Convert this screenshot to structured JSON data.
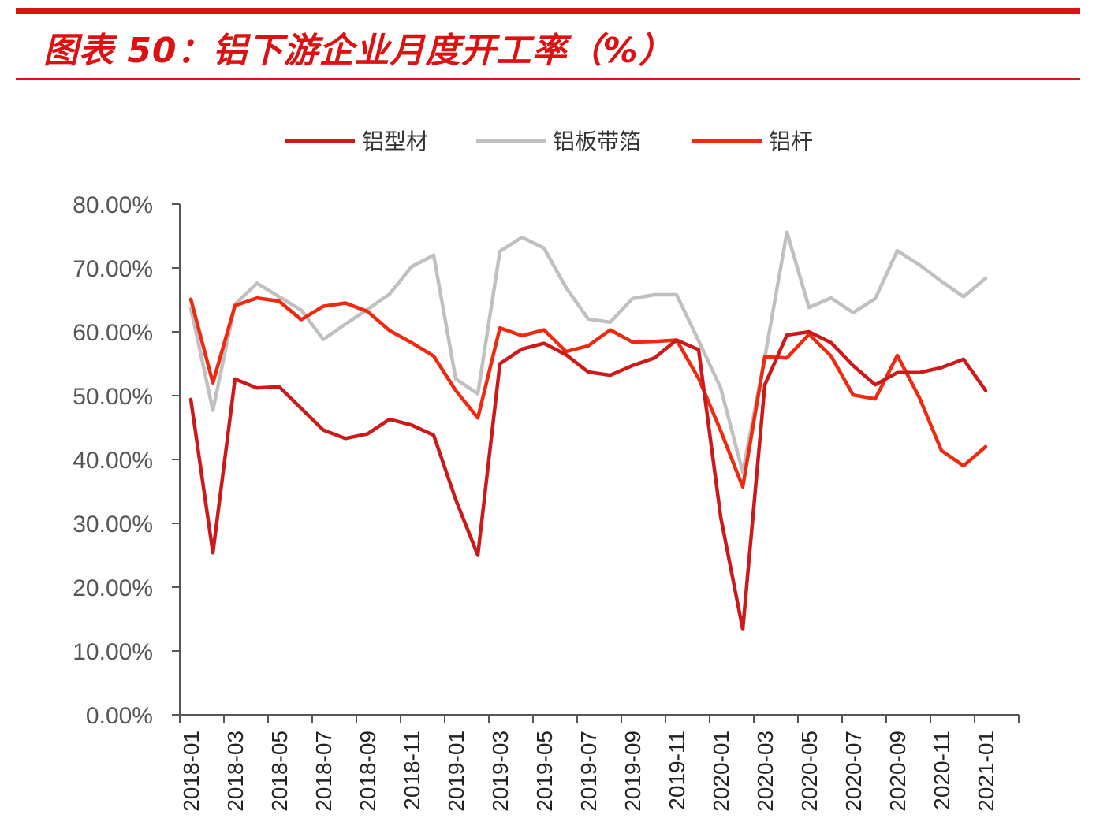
{
  "header": {
    "title": "图表 50：铝下游企业月度开工率（%）",
    "accent_color": "#dd1111"
  },
  "chart_data": {
    "type": "line",
    "title": "图表 50：铝下游企业月度开工率（%）",
    "xlabel": "",
    "ylabel": "",
    "ylim": [
      0,
      80
    ],
    "y_ticks": [
      "0.00%",
      "10.00%",
      "20.00%",
      "30.00%",
      "40.00%",
      "50.00%",
      "60.00%",
      "70.00%",
      "80.00%"
    ],
    "x_tick_labels": [
      "2018-01",
      "2018-03",
      "2018-05",
      "2018-07",
      "2018-09",
      "2018-11",
      "2019-01",
      "2019-03",
      "2019-05",
      "2019-07",
      "2019-09",
      "2019-11",
      "2020-01",
      "2020-03",
      "2020-05",
      "2020-07",
      "2020-09",
      "2020-11",
      "2021-01"
    ],
    "x": [
      "2018-01",
      "2018-02",
      "2018-03",
      "2018-04",
      "2018-05",
      "2018-06",
      "2018-07",
      "2018-08",
      "2018-09",
      "2018-10",
      "2018-11",
      "2018-12",
      "2019-01",
      "2019-02",
      "2019-03",
      "2019-04",
      "2019-05",
      "2019-06",
      "2019-07",
      "2019-08",
      "2019-09",
      "2019-10",
      "2019-11",
      "2019-12",
      "2020-01",
      "2020-02",
      "2020-03",
      "2020-04",
      "2020-05",
      "2020-06",
      "2020-07",
      "2020-08",
      "2020-09",
      "2020-10",
      "2020-11",
      "2020-12",
      "2021-01",
      "2021-02"
    ],
    "grid": false,
    "legend_position": "top",
    "series": [
      {
        "name": "铝型材",
        "color": "#cc1a1a",
        "values": [
          49.4,
          25.4,
          52.6,
          51.2,
          51.4,
          48.0,
          44.6,
          43.3,
          44.0,
          46.3,
          45.4,
          43.8,
          33.7,
          25.0,
          55.0,
          57.3,
          58.2,
          56.4,
          53.7,
          53.2,
          54.7,
          55.9,
          58.7,
          57.2,
          31.0,
          13.4,
          51.7,
          59.5,
          60.0,
          58.3,
          54.7,
          51.7,
          53.6,
          53.6,
          54.4,
          55.7,
          50.8,
          null
        ]
      },
      {
        "name": "铝板带箔",
        "color": "#c0c0c0",
        "values": [
          63.7,
          47.7,
          64.3,
          67.6,
          65.5,
          63.4,
          58.8,
          61.2,
          63.5,
          65.9,
          70.2,
          72.0,
          52.6,
          50.3,
          72.6,
          74.8,
          73.1,
          66.9,
          62.0,
          61.5,
          65.2,
          65.8,
          65.8,
          58.6,
          51.2,
          38.0,
          56.0,
          75.6,
          63.8,
          65.3,
          63.0,
          65.2,
          72.7,
          70.5,
          67.9,
          65.5,
          68.4,
          null
        ]
      },
      {
        "name": "铝杆",
        "color": "#ee2a10",
        "values": [
          65.1,
          52.0,
          64.1,
          65.3,
          64.8,
          61.9,
          64.0,
          64.5,
          63.2,
          60.2,
          58.3,
          56.2,
          50.8,
          46.5,
          60.6,
          59.4,
          60.3,
          56.9,
          57.8,
          60.3,
          58.4,
          58.5,
          58.7,
          52.7,
          44.5,
          35.7,
          56.1,
          55.9,
          59.6,
          56.2,
          50.1,
          49.5,
          56.3,
          49.7,
          41.4,
          39.0,
          42.0,
          null
        ]
      }
    ]
  }
}
